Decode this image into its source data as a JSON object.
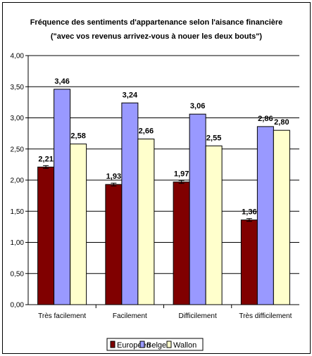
{
  "chart_data": {
    "type": "bar",
    "title": "Fréquence des sentiments d'appartenance selon l'aisance financière",
    "subtitle": "(\"avec vos revenus arrivez-vous à nouer les deux bouts\")",
    "categories": [
      "Très facilement",
      "Facilement",
      "Difficilement",
      "Très difficilement"
    ],
    "series": [
      {
        "name": "Européen",
        "color": "#800000",
        "values": [
          2.21,
          1.93,
          1.97,
          1.36
        ],
        "labels": [
          "2,21",
          "1,93",
          "1,97",
          "1,36"
        ]
      },
      {
        "name": "Belge",
        "color": "#9999ff",
        "values": [
          3.46,
          3.24,
          3.06,
          2.86
        ],
        "labels": [
          "3,46",
          "3,24",
          "3,06",
          "2,86"
        ]
      },
      {
        "name": "Wallon",
        "color": "#ffffcc",
        "values": [
          2.58,
          2.66,
          2.55,
          2.8
        ],
        "labels": [
          "2,58",
          "2,66",
          "2,55",
          "2,80"
        ]
      }
    ],
    "ylim": [
      0,
      4
    ],
    "yticks": [
      0,
      0.5,
      1,
      1.5,
      2,
      2.5,
      3,
      3.5,
      4
    ],
    "ytick_labels": [
      "0,00",
      "0,50",
      "1,00",
      "1,50",
      "2,00",
      "2,50",
      "3,00",
      "3,50",
      "4,00"
    ],
    "grid": true,
    "legend_position": "bottom",
    "error_bars": true
  }
}
